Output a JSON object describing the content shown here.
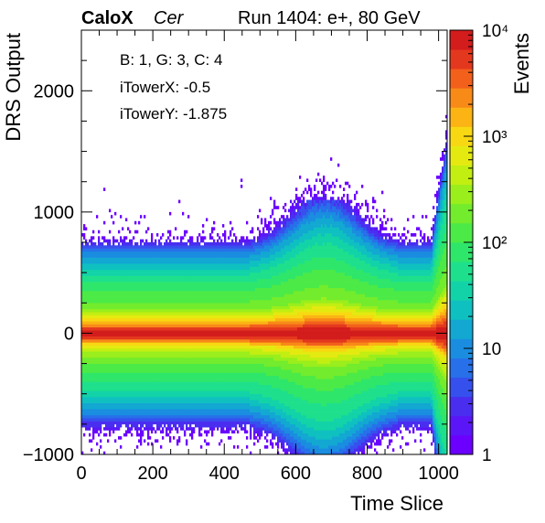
{
  "header": {
    "brand": "CaloX",
    "channel": "Cer",
    "run_label": "Run 1404: e+, 80 GeV"
  },
  "info_box": {
    "line1": "B: 1, G: 3, C: 4",
    "line2": "iTowerX: -0.5",
    "line3": "iTowerY: -1.875"
  },
  "chart_data": {
    "type": "heatmap",
    "xlabel": "Time Slice",
    "ylabel": "DRS Output",
    "xlim": [
      0,
      1024
    ],
    "ylim": [
      -1000,
      2500
    ],
    "x_ticks": [
      0,
      200,
      400,
      600,
      800,
      1000
    ],
    "y_ticks": [
      -1000,
      0,
      1000,
      2000
    ],
    "x_tick_labels": [
      "0",
      "200",
      "400",
      "600",
      "800",
      "1000"
    ],
    "y_tick_labels": [
      "−1000",
      "0",
      "1000",
      "2000"
    ],
    "colorbar": {
      "label": "Events",
      "scale": "log",
      "range": [
        1,
        10000
      ],
      "tick_labels": [
        "1",
        "10",
        "10²",
        "10³",
        "10⁴"
      ]
    },
    "baseline_band": {
      "description_levels": "counts per bin vs DRS Output (log scale)",
      "profile": [
        {
          "y": 20,
          "counts": 8000
        },
        {
          "y": -20,
          "counts": 8000
        },
        {
          "y": 60,
          "counts": 3000
        },
        {
          "y": -60,
          "counts": 3000
        },
        {
          "y": 100,
          "counts": 1200
        },
        {
          "y": -100,
          "counts": 800
        },
        {
          "y": 200,
          "counts": 200
        },
        {
          "y": -200,
          "counts": 200
        },
        {
          "y": 350,
          "counts": 100
        },
        {
          "y": -350,
          "counts": 80
        },
        {
          "y": 500,
          "counts": 40
        },
        {
          "y": -500,
          "counts": 40
        },
        {
          "y": 650,
          "counts": 10
        },
        {
          "y": -650,
          "counts": 10
        },
        {
          "y": 750,
          "counts": 2
        },
        {
          "y": -780,
          "counts": 2
        }
      ],
      "signal_bump": {
        "x_center": 680,
        "x_width": 120,
        "y_extent": 1100
      },
      "late_rise": {
        "x_start": 980,
        "y_max": 1200
      }
    },
    "grid": false,
    "legend": "colorbar-right"
  }
}
